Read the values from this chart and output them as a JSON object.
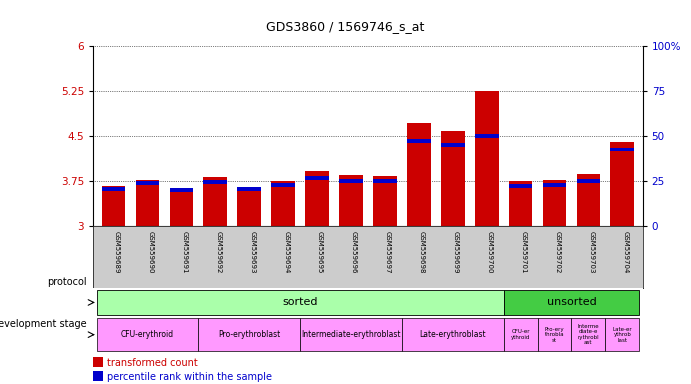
{
  "title": "GDS3860 / 1569746_s_at",
  "samples": [
    "GSM559689",
    "GSM559690",
    "GSM559691",
    "GSM559692",
    "GSM559693",
    "GSM559694",
    "GSM559695",
    "GSM559696",
    "GSM559697",
    "GSM559698",
    "GSM559699",
    "GSM559700",
    "GSM559701",
    "GSM559702",
    "GSM559703",
    "GSM559704"
  ],
  "bar_values": [
    3.67,
    3.78,
    3.63,
    3.82,
    3.65,
    3.75,
    3.93,
    3.85,
    3.84,
    4.72,
    4.58,
    5.25,
    3.76,
    3.77,
    3.87,
    4.4
  ],
  "blue_values": [
    3.62,
    3.72,
    3.6,
    3.74,
    3.62,
    3.69,
    3.81,
    3.76,
    3.75,
    4.42,
    4.35,
    4.5,
    3.68,
    3.69,
    3.76,
    4.28
  ],
  "ylim_left": [
    3.0,
    6.0
  ],
  "ylim_right": [
    0,
    100
  ],
  "yticks_left": [
    3.0,
    3.75,
    4.5,
    5.25,
    6.0
  ],
  "yticks_left_labels": [
    "3",
    "3.75",
    "4.5",
    "5.25",
    "6"
  ],
  "yticks_right": [
    0,
    25,
    50,
    75,
    100
  ],
  "yticks_right_labels": [
    "0",
    "25",
    "50",
    "75",
    "100%"
  ],
  "bar_color": "#cc0000",
  "blue_color": "#0000cc",
  "protocol_sorted_color": "#aaffaa",
  "protocol_unsorted_color": "#44cc44",
  "dev_stage_color": "#ff99ff",
  "ticklabel_color_left": "#cc0000",
  "ticklabel_color_right": "#0000cc",
  "grid_color": "black",
  "bg_color": "#ffffff",
  "xticklabel_bg": "#cccccc",
  "dev_sorted_labels": [
    "CFU-erythroid",
    "Pro-erythroblast",
    "Intermediate-erythroblast",
    "Late-erythroblast"
  ],
  "dev_sorted_ranges": [
    [
      0,
      2
    ],
    [
      3,
      5
    ],
    [
      6,
      8
    ],
    [
      9,
      11
    ]
  ],
  "dev_unsorted_labels": [
    "CFU-erythroid",
    "Pro-erythroblast",
    "Intermediate-erythroblast",
    "Late-erythroblast"
  ],
  "dev_unsorted_ranges": [
    [
      12,
      12
    ],
    [
      13,
      13
    ],
    [
      14,
      14
    ],
    [
      15,
      15
    ]
  ]
}
